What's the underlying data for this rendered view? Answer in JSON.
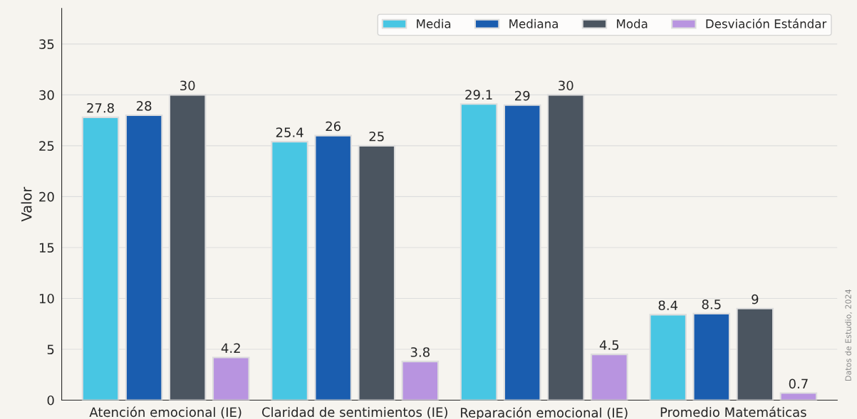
{
  "chart_data": {
    "type": "bar",
    "ylabel": "Valor",
    "categories": [
      "Atención emocional (IE)",
      "Claridad de sentimientos (IE)",
      "Reparación emocional (IE)",
      "Promedio Matemáticas"
    ],
    "series": [
      {
        "name": "Media",
        "color": "#48c6e3",
        "values": [
          27.8,
          25.4,
          29.1,
          8.4
        ]
      },
      {
        "name": "Mediana",
        "color": "#1a5daf",
        "values": [
          28,
          26,
          29,
          8.5
        ]
      },
      {
        "name": "Moda",
        "color": "#4b5560",
        "values": [
          30,
          25,
          30,
          9
        ]
      },
      {
        "name": "Desviación Estándar",
        "color": "#b894e0",
        "values": [
          4.2,
          3.8,
          4.5,
          0.7
        ]
      }
    ],
    "ylim": [
      0,
      38.5
    ],
    "yticks": [
      0,
      5,
      10,
      15,
      20,
      25,
      30,
      35
    ],
    "grid": "y",
    "legend": "top right",
    "data_labels": true,
    "annotations": [
      "Datos de Estudio, 2024"
    ]
  }
}
